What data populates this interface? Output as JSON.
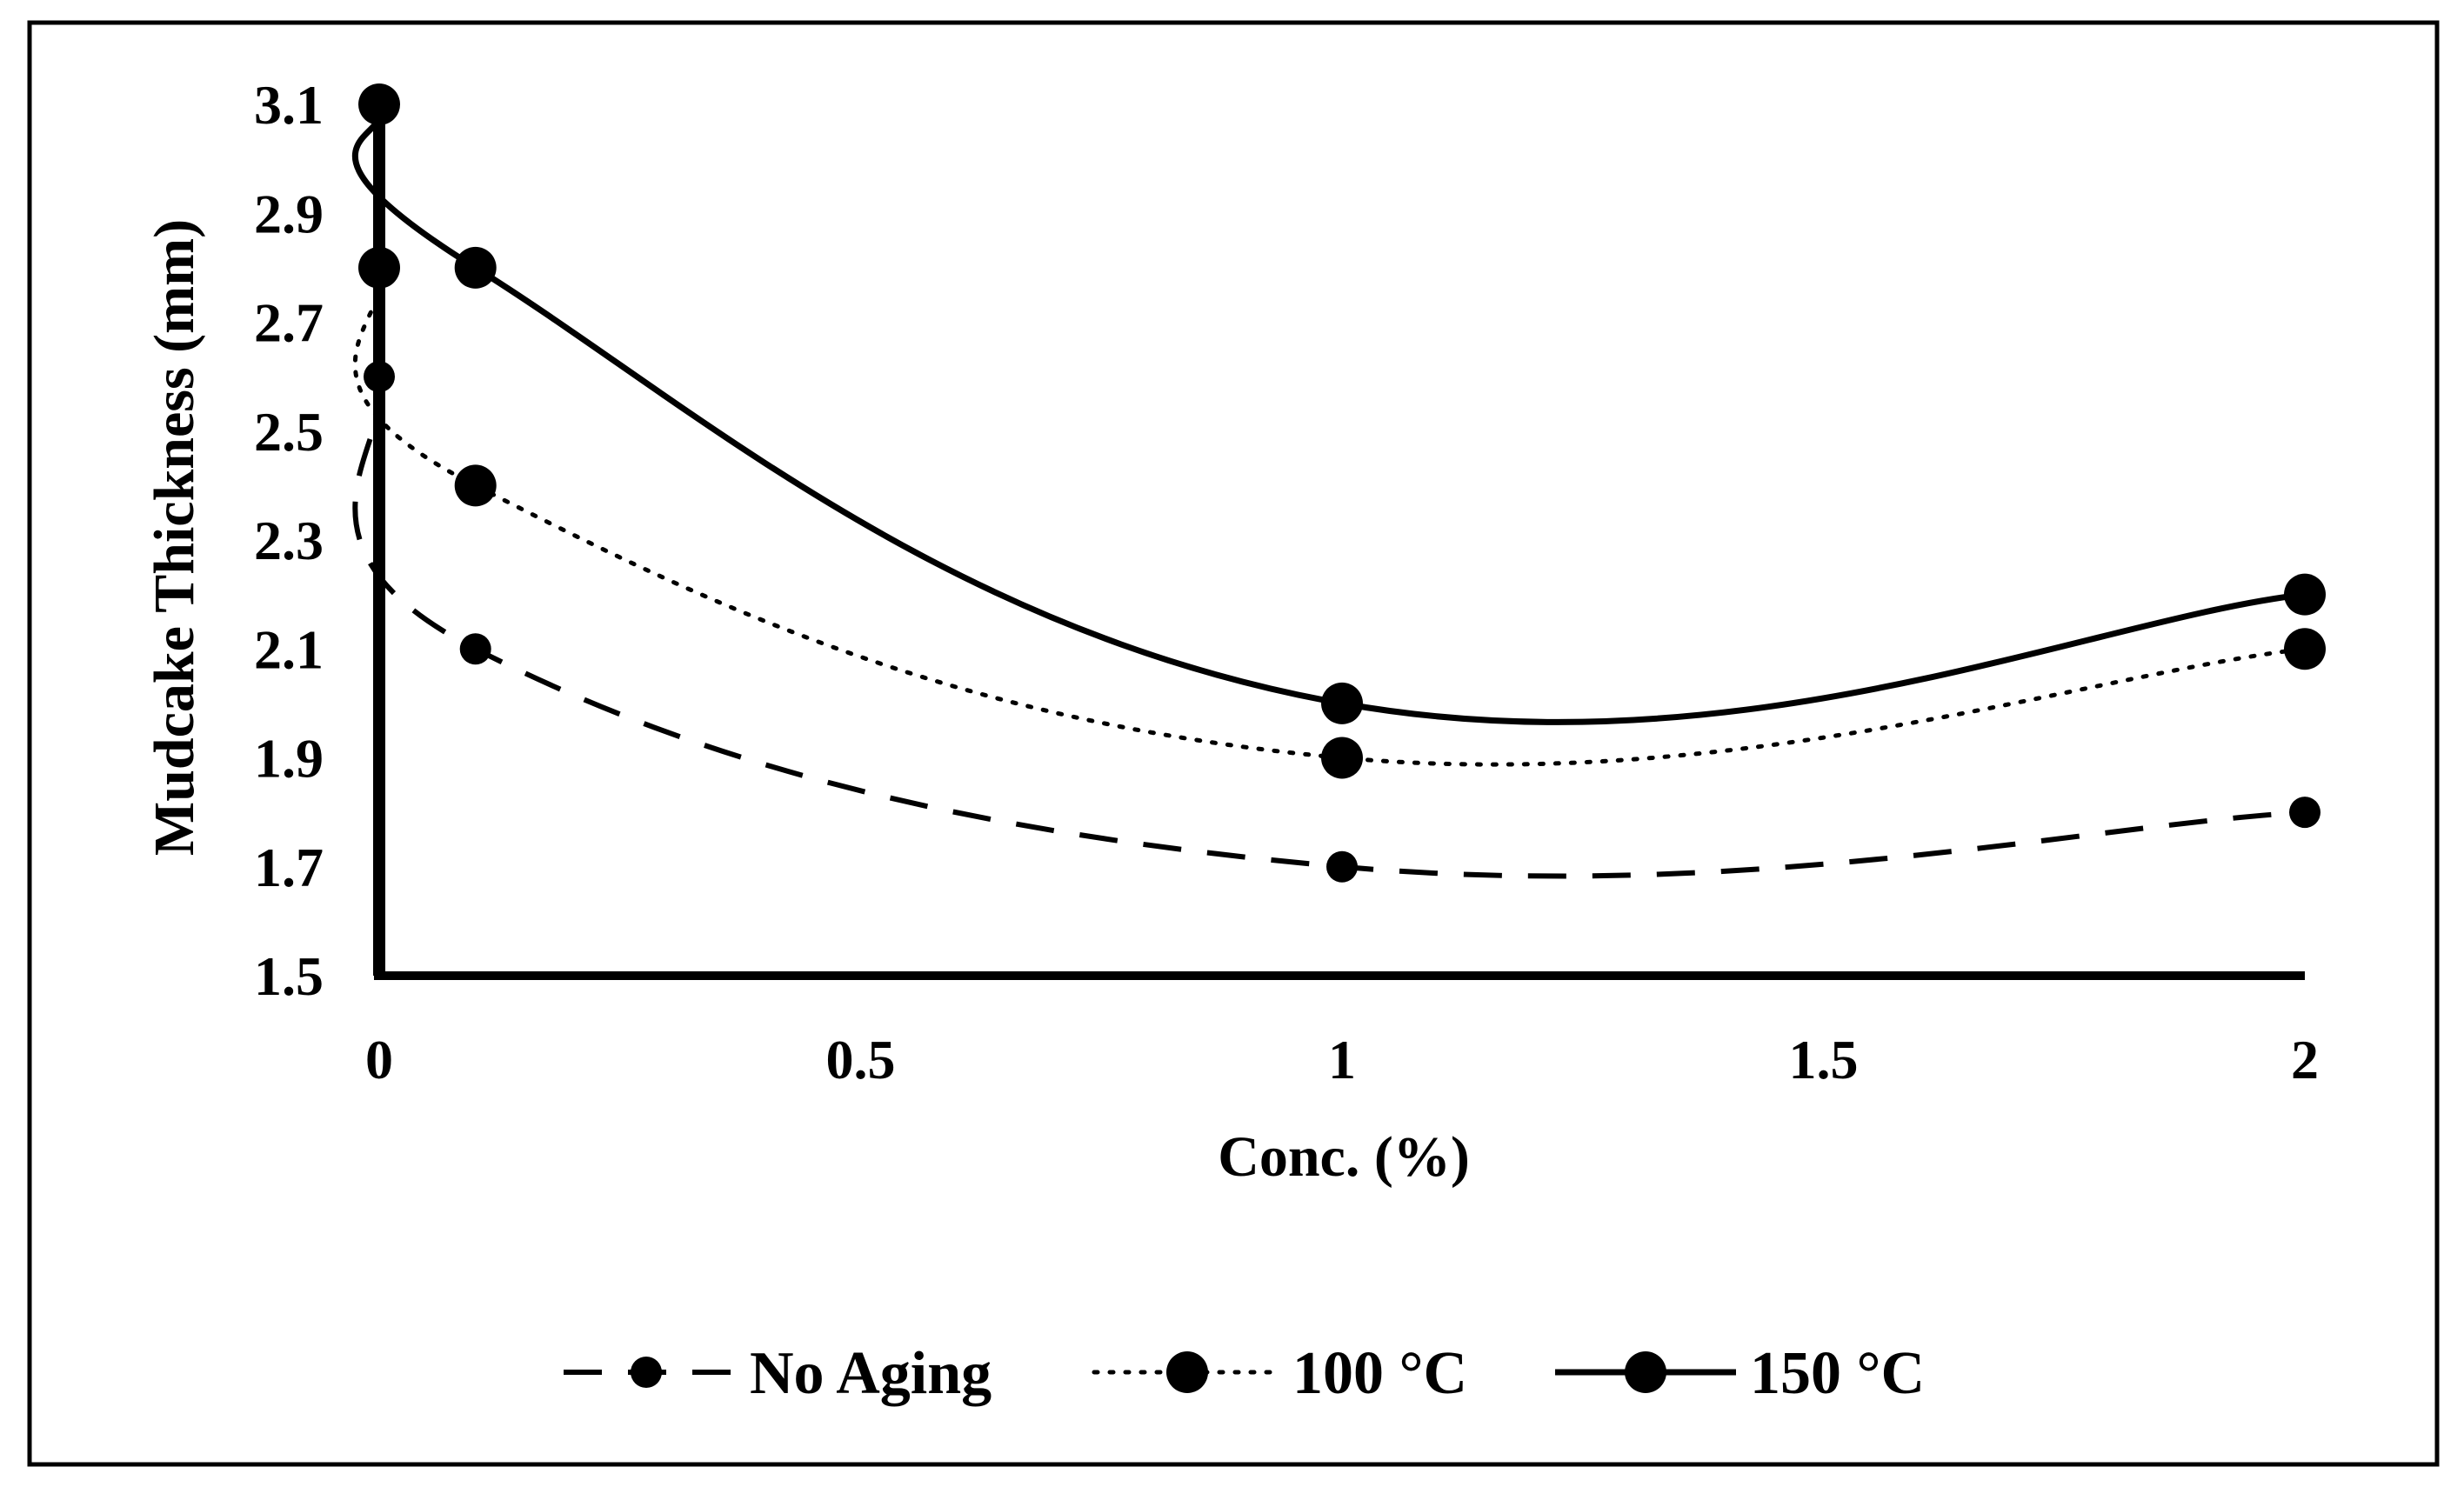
{
  "chart_data": {
    "type": "line",
    "x": [
      0,
      0.1,
      1,
      2
    ],
    "series": [
      {
        "name": "No Aging",
        "values": [
          2.6,
          2.1,
          1.7,
          1.8
        ],
        "style": "dashed",
        "marker": "small"
      },
      {
        "name": "100 °C",
        "values": [
          2.8,
          2.4,
          1.9,
          2.1
        ],
        "style": "dotted",
        "marker": "large"
      },
      {
        "name": "150 °C",
        "values": [
          3.1,
          2.8,
          2.0,
          2.2
        ],
        "style": "solid",
        "marker": "large"
      }
    ],
    "title": "",
    "xlabel": "Conc. (%)",
    "ylabel": "Mudcake Thickness (mm)",
    "xlim": [
      0,
      2
    ],
    "ylim": [
      1.5,
      3.1
    ],
    "xticks": [
      {
        "value": 0,
        "label": "0"
      },
      {
        "value": 0.5,
        "label": "0.5"
      },
      {
        "value": 1,
        "label": "1"
      },
      {
        "value": 1.5,
        "label": "1.5"
      },
      {
        "value": 2,
        "label": "2"
      }
    ],
    "yticks": [
      {
        "value": 1.5,
        "label": "1.5"
      },
      {
        "value": 1.7,
        "label": "1.7"
      },
      {
        "value": 1.9,
        "label": "1.9"
      },
      {
        "value": 2.1,
        "label": "2.1"
      },
      {
        "value": 2.3,
        "label": "2.3"
      },
      {
        "value": 2.5,
        "label": "2.5"
      },
      {
        "value": 2.7,
        "label": "2.7"
      },
      {
        "value": 2.9,
        "label": "2.9"
      },
      {
        "value": 3.1,
        "label": "3.1"
      }
    ],
    "grid": false,
    "legend": "bottom",
    "line_color": "#000000"
  }
}
